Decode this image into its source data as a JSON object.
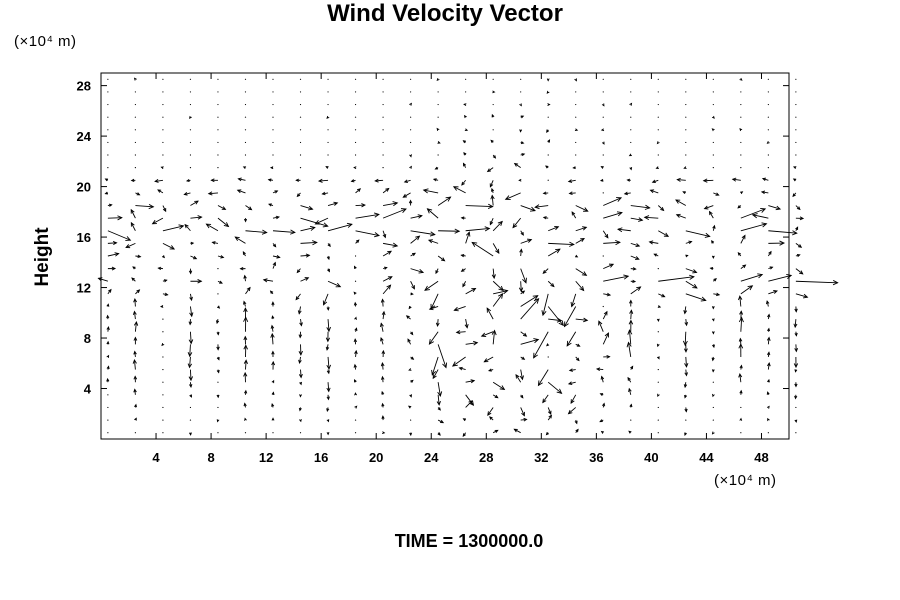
{
  "chart_data": {
    "type": "vector field (quiver)",
    "title": "Wind Velocity Vector",
    "ylabel": "Height",
    "y_unit": "(×10⁴ m)",
    "x_unit": "(×10⁴ m)",
    "xlim": [
      0,
      50
    ],
    "ylim": [
      0,
      29
    ],
    "x_ticks": [
      4,
      8,
      12,
      16,
      20,
      24,
      28,
      32,
      36,
      40,
      44,
      48
    ],
    "y_ticks": [
      4,
      8,
      12,
      16,
      20,
      24,
      28
    ],
    "grid": false,
    "time_label": "TIME = 1300000.0",
    "vector_field": {
      "x_start": 0,
      "x_step": 2,
      "x_count": 26,
      "y_start": 0,
      "y_step": 1,
      "y_count": 30,
      "note": "vectors sampled on a regular grid; strong shear layers near heights 12–20, weak flow aloft"
    }
  }
}
